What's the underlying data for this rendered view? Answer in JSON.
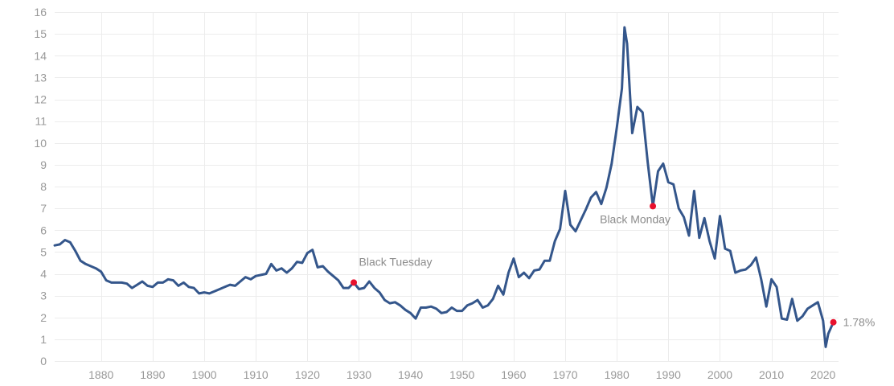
{
  "chart_data": {
    "type": "line",
    "title": "",
    "xlabel": "",
    "ylabel": "",
    "xlim": [
      1871,
      2023
    ],
    "ylim": [
      0,
      16
    ],
    "x_ticks": [
      1880,
      1890,
      1900,
      1910,
      1920,
      1930,
      1940,
      1950,
      1960,
      1970,
      1980,
      1990,
      2000,
      2010,
      2020
    ],
    "y_ticks": [
      0,
      1,
      2,
      3,
      4,
      5,
      6,
      7,
      8,
      9,
      10,
      11,
      12,
      13,
      14,
      15,
      16
    ],
    "grid": true,
    "legend": "none",
    "colors": {
      "line": "#34568b",
      "marker": "#e8112d",
      "grid": "#ececec",
      "tick_text": "#999999",
      "annotation_text": "#8c8c8c"
    },
    "series": [
      {
        "x": [
          1871,
          1872,
          1873,
          1874,
          1875,
          1876,
          1877,
          1878,
          1879,
          1880,
          1881,
          1882,
          1883,
          1884,
          1885,
          1886,
          1887,
          1888,
          1889,
          1890,
          1891,
          1892,
          1893,
          1894,
          1895,
          1896,
          1897,
          1898,
          1899,
          1900,
          1901,
          1902,
          1903,
          1904,
          1905,
          1906,
          1907,
          1908,
          1909,
          1910,
          1911,
          1912,
          1913,
          1914,
          1915,
          1916,
          1917,
          1918,
          1919,
          1920,
          1921,
          1922,
          1923,
          1924,
          1925,
          1926,
          1927,
          1928,
          1929,
          1930,
          1931,
          1932,
          1933,
          1934,
          1935,
          1936,
          1937,
          1938,
          1939,
          1940,
          1941,
          1942,
          1943,
          1944,
          1945,
          1946,
          1947,
          1948,
          1949,
          1950,
          1951,
          1952,
          1953,
          1954,
          1955,
          1956,
          1957,
          1958,
          1959,
          1960,
          1961,
          1962,
          1963,
          1964,
          1965,
          1966,
          1967,
          1968,
          1969,
          1970,
          1971,
          1972,
          1973,
          1974,
          1975,
          1976,
          1977,
          1978,
          1979,
          1980,
          1981,
          1981.5,
          1982,
          1983,
          1984,
          1985,
          1986,
          1987,
          1988,
          1989,
          1990,
          1991,
          1992,
          1993,
          1994,
          1995,
          1996,
          1997,
          1998,
          1999,
          2000,
          2001,
          2002,
          2003,
          2004,
          2005,
          2006,
          2007,
          2008,
          2009,
          2010,
          2011,
          2012,
          2013,
          2014,
          2015,
          2016,
          2017,
          2018,
          2019,
          2020,
          2020.5,
          2021,
          2022
        ],
        "values": [
          5.3,
          5.35,
          5.55,
          5.45,
          5.05,
          4.6,
          4.45,
          4.35,
          4.25,
          4.1,
          3.7,
          3.6,
          3.6,
          3.6,
          3.55,
          3.35,
          3.5,
          3.65,
          3.45,
          3.4,
          3.6,
          3.6,
          3.75,
          3.7,
          3.45,
          3.6,
          3.4,
          3.35,
          3.1,
          3.15,
          3.1,
          3.2,
          3.3,
          3.4,
          3.5,
          3.45,
          3.65,
          3.85,
          3.75,
          3.9,
          3.95,
          4.0,
          4.45,
          4.15,
          4.25,
          4.05,
          4.25,
          4.55,
          4.5,
          4.95,
          5.1,
          4.3,
          4.35,
          4.1,
          3.9,
          3.7,
          3.35,
          3.35,
          3.6,
          3.3,
          3.35,
          3.65,
          3.35,
          3.15,
          2.8,
          2.65,
          2.7,
          2.55,
          2.35,
          2.2,
          1.95,
          2.45,
          2.45,
          2.5,
          2.4,
          2.2,
          2.25,
          2.45,
          2.3,
          2.3,
          2.55,
          2.65,
          2.8,
          2.45,
          2.55,
          2.85,
          3.45,
          3.05,
          4.05,
          4.7,
          3.85,
          4.05,
          3.8,
          4.15,
          4.2,
          4.6,
          4.6,
          5.5,
          6.05,
          7.8,
          6.25,
          5.95,
          6.45,
          6.95,
          7.5,
          7.75,
          7.2,
          7.95,
          9.05,
          10.7,
          12.5,
          15.3,
          14.55,
          10.45,
          11.65,
          11.4,
          9.1,
          7.1,
          8.7,
          9.05,
          8.2,
          8.1,
          7.0,
          6.6,
          5.75,
          7.8,
          5.65,
          6.55,
          5.5,
          4.7,
          6.65,
          5.15,
          5.05,
          4.05,
          4.15,
          4.2,
          4.4,
          4.75,
          3.75,
          2.5,
          3.75,
          3.4,
          1.95,
          1.9,
          2.85,
          1.85,
          2.05,
          2.4,
          2.55,
          2.7,
          1.85,
          0.65,
          1.25,
          1.78
        ]
      }
    ],
    "annotations": [
      {
        "label": "Black Tuesday",
        "x": 1929,
        "y": 3.6
      },
      {
        "label": "Black Monday",
        "x": 1987,
        "y": 7.1
      },
      {
        "label": "1.78%",
        "x": 2022,
        "y": 1.78
      }
    ]
  }
}
